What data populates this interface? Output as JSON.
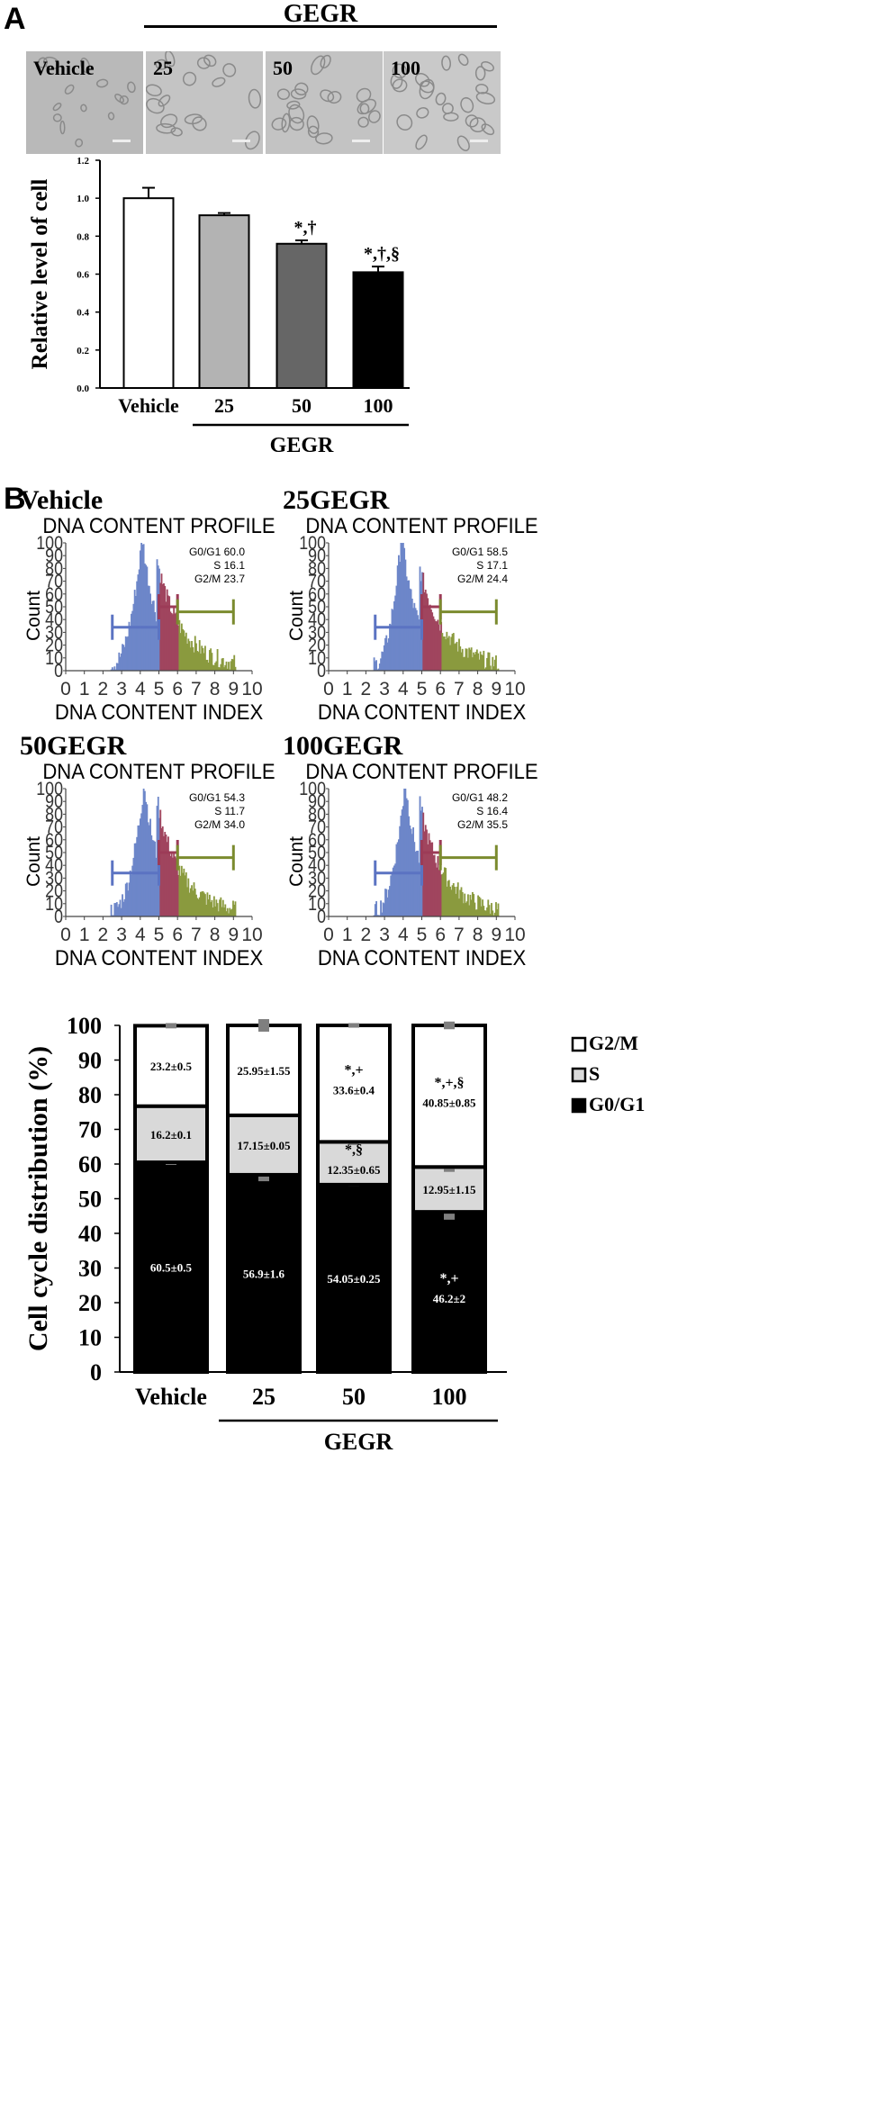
{
  "panel_a": {
    "letter": "A",
    "group_label": "GEGR",
    "micrographs": [
      {
        "label": "Vehicle",
        "tint": "#b9b9b9"
      },
      {
        "label": "25",
        "tint": "#c4c4c4"
      },
      {
        "label": "50",
        "tint": "#c3c3c3"
      },
      {
        "label": "100",
        "tint": "#c9c9c9"
      }
    ]
  },
  "panel_b": {
    "letter": "B"
  },
  "chart_data": [
    {
      "type": "bar",
      "ylabel": "Relative level of cell",
      "ylim": [
        0,
        1.2
      ],
      "yticks": [
        "0.0",
        "0.2",
        "0.4",
        "0.6",
        "0.8",
        "1.0",
        "1.2"
      ],
      "categories": [
        "Vehicle",
        "25",
        "50",
        "100"
      ],
      "group_label": "GEGR",
      "values": [
        1.0,
        0.91,
        0.76,
        0.61
      ],
      "errors": [
        0.055,
        0.012,
        0.018,
        0.03
      ],
      "bar_colors": [
        "#ffffff",
        "#b3b3b3",
        "#666666",
        "#000000"
      ],
      "significance": [
        "",
        "",
        "*,†",
        "*,†,§"
      ]
    },
    {
      "type": "histogram",
      "name": "Vehicle",
      "title": "DNA CONTENT PROFILE",
      "xlabel": "DNA CONTENT INDEX",
      "ylabel": "Count",
      "xlim": [
        0,
        10
      ],
      "ylim": [
        0,
        100
      ],
      "stats": [
        "G0/G1 60.0",
        "S 16.1",
        "G2/M 23.7"
      ],
      "peak": 4.0,
      "phases": {
        "G0G1": [
          2.5,
          5.0
        ],
        "S": [
          5.0,
          6.0
        ],
        "G2M": [
          6.0,
          9.0
        ]
      }
    },
    {
      "type": "histogram",
      "name": "25GEGR",
      "title": "DNA CONTENT PROFILE",
      "xlabel": "DNA CONTENT INDEX",
      "ylabel": "Count",
      "xlim": [
        0,
        10
      ],
      "ylim": [
        0,
        100
      ],
      "stats": [
        "G0/G1 58.5",
        "S 17.1",
        "G2/M 24.4"
      ],
      "peak": 3.8,
      "phases": {
        "G0G1": [
          2.5,
          5.0
        ],
        "S": [
          5.0,
          6.0
        ],
        "G2M": [
          6.0,
          9.0
        ]
      }
    },
    {
      "type": "histogram",
      "name": "50GEGR",
      "title": "DNA CONTENT PROFILE",
      "xlabel": "DNA CONTENT INDEX",
      "ylabel": "Count",
      "xlim": [
        0,
        10
      ],
      "ylim": [
        0,
        100
      ],
      "stats": [
        "G0/G1 54.3",
        "S 11.7",
        "G2/M 34.0"
      ],
      "peak": 4.1,
      "phases": {
        "G0G1": [
          2.5,
          5.0
        ],
        "S": [
          5.0,
          6.0
        ],
        "G2M": [
          6.0,
          9.0
        ]
      }
    },
    {
      "type": "histogram",
      "name": "100GEGR",
      "title": "DNA CONTENT PROFILE",
      "xlabel": "DNA CONTENT INDEX",
      "ylabel": "Count",
      "xlim": [
        0,
        10
      ],
      "ylim": [
        0,
        100
      ],
      "stats": [
        "G0/G1 48.2",
        "S 16.4",
        "G2/M 35.5"
      ],
      "peak": 4.0,
      "phases": {
        "G0G1": [
          2.5,
          5.0
        ],
        "S": [
          5.0,
          6.0
        ],
        "G2M": [
          6.0,
          9.0
        ]
      }
    },
    {
      "type": "stacked_bar",
      "ylabel": "Cell cycle distribution  (%)",
      "ylim": [
        0,
        100
      ],
      "yticks": [
        "0",
        "10",
        "20",
        "30",
        "40",
        "50",
        "60",
        "70",
        "80",
        "90",
        "100"
      ],
      "categories": [
        "Vehicle",
        "25",
        "50",
        "100"
      ],
      "group_label": "GEGR",
      "series": [
        {
          "name": "G0/G1",
          "color": "#000000",
          "values": [
            60.5,
            56.9,
            54.05,
            46.2
          ],
          "errors": [
            0.5,
            1.6,
            0.25,
            2.0
          ],
          "labels": [
            "60.5±0.5",
            "56.9±1.6",
            "54.05±0.25",
            "46.2±2"
          ],
          "significance": [
            "",
            "",
            "",
            "*,+"
          ]
        },
        {
          "name": "S",
          "color": "#d9d9d9",
          "values": [
            16.2,
            17.15,
            12.35,
            12.95
          ],
          "errors": [
            0.1,
            0.05,
            0.65,
            1.15
          ],
          "labels": [
            "16.2±0.1",
            "17.15±0.05",
            "12.35±0.65",
            "12.95±1.15"
          ],
          "significance": [
            "",
            "",
            "*,§",
            ""
          ]
        },
        {
          "name": "G2/M",
          "color": "#ffffff",
          "values": [
            23.2,
            25.95,
            33.6,
            40.85
          ],
          "errors": [
            0.5,
            1.55,
            0.4,
            0.85
          ],
          "labels": [
            "23.2±0.5",
            "25.95±1.55",
            "33.6±0.4",
            "40.85±0.85"
          ],
          "significance": [
            "",
            "",
            "*,+",
            "*,+,§"
          ]
        }
      ],
      "legend": [
        "G2/M",
        "S",
        "G0/G1"
      ]
    }
  ]
}
